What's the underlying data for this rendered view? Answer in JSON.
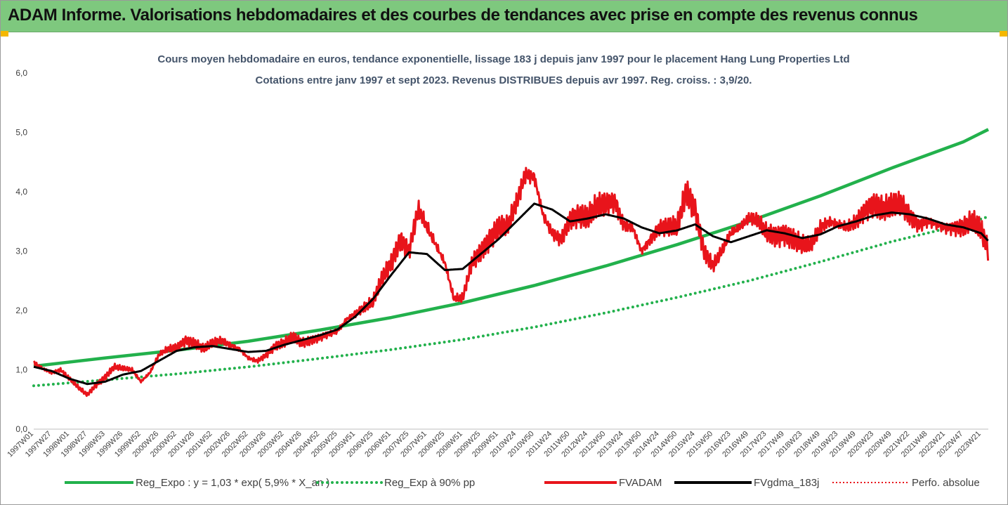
{
  "header": {
    "title": "ADAM Informe. Valorisations hebdomadaires et des courbes de tendances avec prise en compte des revenus connus"
  },
  "colors": {
    "banner": "#7ec87e",
    "reg_expo": "#22b14c",
    "reg_exp_90": "#22b14c",
    "fvadam": "#e8141b",
    "fvgdma": "#000000",
    "perfo": "#e8141b"
  },
  "chart_data": {
    "type": "line",
    "title_lines": [
      "Cours moyen hebdomadaire en euros, tendance exponentielle, lissage 183 j depuis janv 1997 pour le placement Hang Lung Properties Ltd",
      "Cotations entre janv 1997 et sept 2023. Revenus DISTRIBUES depuis avr 1997. Reg. croiss. : 3,9/20."
    ],
    "y_ticks": [
      "0,0",
      "1,0",
      "2,0",
      "3,0",
      "4,0",
      "5,0",
      "6,0"
    ],
    "ylim": [
      0,
      6
    ],
    "xlim": [
      1997.0,
      2023.7
    ],
    "x_ticks": [
      {
        "label": "1997W01",
        "t": 1997.0
      },
      {
        "label": "1997W27",
        "t": 1997.5
      },
      {
        "label": "1998W01",
        "t": 1998.0
      },
      {
        "label": "1998W27",
        "t": 1998.5
      },
      {
        "label": "1998W53",
        "t": 1999.0
      },
      {
        "label": "1999W26",
        "t": 1999.5
      },
      {
        "label": "1999W52",
        "t": 2000.0
      },
      {
        "label": "2000W26",
        "t": 2000.5
      },
      {
        "label": "2000W52",
        "t": 2001.0
      },
      {
        "label": "2001W26",
        "t": 2001.5
      },
      {
        "label": "2001W52",
        "t": 2002.0
      },
      {
        "label": "2002W26",
        "t": 2002.5
      },
      {
        "label": "2002W52",
        "t": 2003.0
      },
      {
        "label": "2003W26",
        "t": 2003.5
      },
      {
        "label": "2003W52",
        "t": 2004.0
      },
      {
        "label": "2004W26",
        "t": 2004.5
      },
      {
        "label": "2004W52",
        "t": 2005.0
      },
      {
        "label": "2005W25",
        "t": 2005.5
      },
      {
        "label": "2005W51",
        "t": 2006.0
      },
      {
        "label": "2006W25",
        "t": 2006.5
      },
      {
        "label": "2006W51",
        "t": 2007.0
      },
      {
        "label": "2007W25",
        "t": 2007.5
      },
      {
        "label": "2007W51",
        "t": 2008.0
      },
      {
        "label": "2008W25",
        "t": 2008.5
      },
      {
        "label": "2008W51",
        "t": 2009.0
      },
      {
        "label": "2009W25",
        "t": 2009.5
      },
      {
        "label": "2009W51",
        "t": 2010.0
      },
      {
        "label": "2010W24",
        "t": 2010.5
      },
      {
        "label": "2010W50",
        "t": 2011.0
      },
      {
        "label": "2011W24",
        "t": 2011.5
      },
      {
        "label": "2011W50",
        "t": 2012.0
      },
      {
        "label": "2012W24",
        "t": 2012.5
      },
      {
        "label": "2012W50",
        "t": 2013.0
      },
      {
        "label": "2013W24",
        "t": 2013.5
      },
      {
        "label": "2013W50",
        "t": 2014.0
      },
      {
        "label": "2014W24",
        "t": 2014.5
      },
      {
        "label": "2014W50",
        "t": 2015.0
      },
      {
        "label": "2015W24",
        "t": 2015.5
      },
      {
        "label": "2015W50",
        "t": 2016.0
      },
      {
        "label": "2016W23",
        "t": 2016.5
      },
      {
        "label": "2016W49",
        "t": 2017.0
      },
      {
        "label": "2017W23",
        "t": 2017.5
      },
      {
        "label": "2017W49",
        "t": 2018.0
      },
      {
        "label": "2018W23",
        "t": 2018.5
      },
      {
        "label": "2018W49",
        "t": 2019.0
      },
      {
        "label": "2019W23",
        "t": 2019.5
      },
      {
        "label": "2019W49",
        "t": 2020.0
      },
      {
        "label": "2020W23",
        "t": 2020.5
      },
      {
        "label": "2020W49",
        "t": 2021.0
      },
      {
        "label": "2021W22",
        "t": 2021.5
      },
      {
        "label": "2021W48",
        "t": 2022.0
      },
      {
        "label": "2022W21",
        "t": 2022.5
      },
      {
        "label": "2022W47",
        "t": 2023.0
      },
      {
        "label": "2023W21",
        "t": 2023.5
      }
    ],
    "series": [
      {
        "name": "Reg_Expo : y = 1,03 * exp( 5,9% * X_an )",
        "style": "solid-thick",
        "color": "#22b14c",
        "points": [
          [
            1997.0,
            1.06
          ],
          [
            1999.0,
            1.2
          ],
          [
            2001.0,
            1.33
          ],
          [
            2003.0,
            1.48
          ],
          [
            2005.0,
            1.67
          ],
          [
            2007.0,
            1.88
          ],
          [
            2009.0,
            2.13
          ],
          [
            2011.0,
            2.42
          ],
          [
            2013.0,
            2.75
          ],
          [
            2015.0,
            3.11
          ],
          [
            2017.0,
            3.5
          ],
          [
            2019.0,
            3.93
          ],
          [
            2021.0,
            4.4
          ],
          [
            2023.0,
            4.84
          ],
          [
            2023.7,
            5.05
          ]
        ]
      },
      {
        "name": "Reg_Exp à 90% pp",
        "style": "dotted-thick",
        "color": "#22b14c",
        "points": [
          [
            1997.0,
            0.73
          ],
          [
            1999.0,
            0.83
          ],
          [
            2001.0,
            0.93
          ],
          [
            2003.0,
            1.05
          ],
          [
            2005.0,
            1.19
          ],
          [
            2007.0,
            1.34
          ],
          [
            2009.0,
            1.51
          ],
          [
            2011.0,
            1.72
          ],
          [
            2013.0,
            1.96
          ],
          [
            2015.0,
            2.22
          ],
          [
            2017.0,
            2.5
          ],
          [
            2019.0,
            2.82
          ],
          [
            2021.0,
            3.16
          ],
          [
            2023.0,
            3.45
          ],
          [
            2023.7,
            3.58
          ]
        ]
      },
      {
        "name": "FVADAM",
        "style": "solid-thick",
        "color": "#e8141b",
        "points": [
          [
            1997.0,
            1.12
          ],
          [
            1997.25,
            1.02
          ],
          [
            1997.5,
            0.95
          ],
          [
            1997.75,
            1.0
          ],
          [
            1998.0,
            0.85
          ],
          [
            1998.25,
            0.7
          ],
          [
            1998.5,
            0.58
          ],
          [
            1998.75,
            0.75
          ],
          [
            1999.0,
            0.88
          ],
          [
            1999.25,
            1.05
          ],
          [
            1999.5,
            1.02
          ],
          [
            1999.75,
            1.0
          ],
          [
            2000.0,
            0.8
          ],
          [
            2000.25,
            0.95
          ],
          [
            2000.5,
            1.25
          ],
          [
            2000.75,
            1.35
          ],
          [
            2001.0,
            1.38
          ],
          [
            2001.25,
            1.5
          ],
          [
            2001.5,
            1.45
          ],
          [
            2001.75,
            1.35
          ],
          [
            2002.0,
            1.45
          ],
          [
            2002.25,
            1.5
          ],
          [
            2002.5,
            1.42
          ],
          [
            2002.75,
            1.35
          ],
          [
            2003.0,
            1.2
          ],
          [
            2003.25,
            1.15
          ],
          [
            2003.5,
            1.25
          ],
          [
            2003.75,
            1.4
          ],
          [
            2004.0,
            1.45
          ],
          [
            2004.25,
            1.55
          ],
          [
            2004.5,
            1.45
          ],
          [
            2004.75,
            1.5
          ],
          [
            2005.0,
            1.55
          ],
          [
            2005.25,
            1.6
          ],
          [
            2005.5,
            1.65
          ],
          [
            2005.75,
            1.85
          ],
          [
            2006.0,
            1.95
          ],
          [
            2006.25,
            2.05
          ],
          [
            2006.5,
            2.15
          ],
          [
            2006.75,
            2.55
          ],
          [
            2007.0,
            2.8
          ],
          [
            2007.25,
            3.2
          ],
          [
            2007.5,
            3.0
          ],
          [
            2007.75,
            3.7
          ],
          [
            2008.0,
            3.4
          ],
          [
            2008.25,
            3.1
          ],
          [
            2008.5,
            2.8
          ],
          [
            2008.75,
            2.2
          ],
          [
            2009.0,
            2.2
          ],
          [
            2009.25,
            2.8
          ],
          [
            2009.5,
            3.0
          ],
          [
            2009.75,
            3.2
          ],
          [
            2010.0,
            3.4
          ],
          [
            2010.25,
            3.4
          ],
          [
            2010.5,
            3.8
          ],
          [
            2010.75,
            4.3
          ],
          [
            2011.0,
            4.25
          ],
          [
            2011.25,
            3.6
          ],
          [
            2011.5,
            3.3
          ],
          [
            2011.75,
            3.2
          ],
          [
            2012.0,
            3.55
          ],
          [
            2012.25,
            3.6
          ],
          [
            2012.5,
            3.55
          ],
          [
            2012.75,
            3.75
          ],
          [
            2013.0,
            3.8
          ],
          [
            2013.25,
            3.85
          ],
          [
            2013.5,
            3.45
          ],
          [
            2013.75,
            3.4
          ],
          [
            2014.0,
            3.0
          ],
          [
            2014.25,
            3.2
          ],
          [
            2014.5,
            3.4
          ],
          [
            2014.75,
            3.4
          ],
          [
            2015.0,
            3.4
          ],
          [
            2015.25,
            4.0
          ],
          [
            2015.5,
            3.7
          ],
          [
            2015.75,
            3.0
          ],
          [
            2016.0,
            2.75
          ],
          [
            2016.25,
            3.0
          ],
          [
            2016.5,
            3.3
          ],
          [
            2016.75,
            3.4
          ],
          [
            2017.0,
            3.55
          ],
          [
            2017.25,
            3.5
          ],
          [
            2017.5,
            3.3
          ],
          [
            2017.75,
            3.25
          ],
          [
            2018.0,
            3.3
          ],
          [
            2018.25,
            3.2
          ],
          [
            2018.5,
            3.1
          ],
          [
            2018.75,
            3.1
          ],
          [
            2019.0,
            3.4
          ],
          [
            2019.25,
            3.5
          ],
          [
            2019.5,
            3.45
          ],
          [
            2019.75,
            3.4
          ],
          [
            2020.0,
            3.5
          ],
          [
            2020.25,
            3.7
          ],
          [
            2020.5,
            3.8
          ],
          [
            2020.75,
            3.7
          ],
          [
            2021.0,
            3.75
          ],
          [
            2021.25,
            3.8
          ],
          [
            2021.5,
            3.6
          ],
          [
            2021.75,
            3.45
          ],
          [
            2022.0,
            3.5
          ],
          [
            2022.25,
            3.45
          ],
          [
            2022.5,
            3.4
          ],
          [
            2022.75,
            3.4
          ],
          [
            2023.0,
            3.4
          ],
          [
            2023.25,
            3.5
          ],
          [
            2023.5,
            3.35
          ],
          [
            2023.7,
            3.0
          ]
        ]
      },
      {
        "name": "FVgdma_183j",
        "style": "solid-thick",
        "color": "#000000",
        "points": [
          [
            1997.0,
            1.05
          ],
          [
            1997.5,
            0.98
          ],
          [
            1998.0,
            0.85
          ],
          [
            1998.5,
            0.76
          ],
          [
            1999.0,
            0.8
          ],
          [
            1999.5,
            0.92
          ],
          [
            2000.0,
            0.98
          ],
          [
            2000.5,
            1.15
          ],
          [
            2001.0,
            1.32
          ],
          [
            2001.5,
            1.38
          ],
          [
            2002.0,
            1.4
          ],
          [
            2002.5,
            1.35
          ],
          [
            2003.0,
            1.3
          ],
          [
            2003.5,
            1.32
          ],
          [
            2004.0,
            1.42
          ],
          [
            2004.5,
            1.5
          ],
          [
            2005.0,
            1.58
          ],
          [
            2005.5,
            1.68
          ],
          [
            2006.0,
            1.9
          ],
          [
            2006.5,
            2.2
          ],
          [
            2007.0,
            2.6
          ],
          [
            2007.5,
            2.98
          ],
          [
            2008.0,
            2.95
          ],
          [
            2008.5,
            2.68
          ],
          [
            2009.0,
            2.7
          ],
          [
            2009.5,
            2.95
          ],
          [
            2010.0,
            3.2
          ],
          [
            2010.5,
            3.5
          ],
          [
            2011.0,
            3.8
          ],
          [
            2011.5,
            3.7
          ],
          [
            2012.0,
            3.5
          ],
          [
            2012.5,
            3.55
          ],
          [
            2013.0,
            3.62
          ],
          [
            2013.5,
            3.55
          ],
          [
            2014.0,
            3.4
          ],
          [
            2014.5,
            3.3
          ],
          [
            2015.0,
            3.35
          ],
          [
            2015.5,
            3.45
          ],
          [
            2016.0,
            3.25
          ],
          [
            2016.5,
            3.15
          ],
          [
            2017.0,
            3.25
          ],
          [
            2017.5,
            3.35
          ],
          [
            2018.0,
            3.3
          ],
          [
            2018.5,
            3.22
          ],
          [
            2019.0,
            3.28
          ],
          [
            2019.5,
            3.42
          ],
          [
            2020.0,
            3.5
          ],
          [
            2020.5,
            3.6
          ],
          [
            2021.0,
            3.65
          ],
          [
            2021.5,
            3.62
          ],
          [
            2022.0,
            3.55
          ],
          [
            2022.5,
            3.45
          ],
          [
            2023.0,
            3.4
          ],
          [
            2023.5,
            3.3
          ],
          [
            2023.7,
            3.17
          ]
        ]
      },
      {
        "name": "Perfo. absolue",
        "style": "dotted-thin",
        "color": "#e8141b",
        "points": []
      }
    ]
  }
}
